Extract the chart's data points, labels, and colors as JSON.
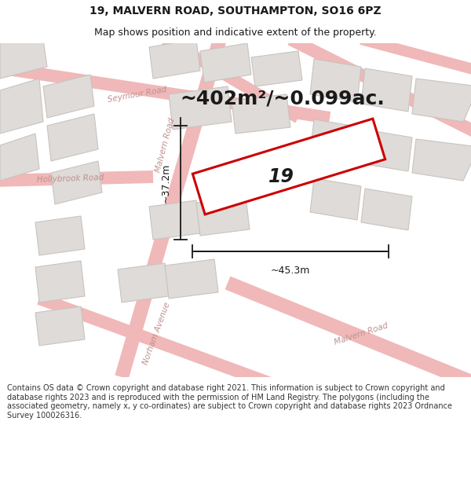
{
  "title_line1": "19, MALVERN ROAD, SOUTHAMPTON, SO16 6PZ",
  "title_line2": "Map shows position and indicative extent of the property.",
  "area_text": "~402m²/~0.099ac.",
  "property_number": "19",
  "dim_width": "~45.3m",
  "dim_height": "~37.2m",
  "footer_text": "Contains OS data © Crown copyright and database right 2021. This information is subject to Crown copyright and database rights 2023 and is reproduced with the permission of HM Land Registry. The polygons (including the associated geometry, namely x, y co-ordinates) are subject to Crown copyright and database rights 2023 Ordnance Survey 100026316.",
  "map_bg": "#f7f5f3",
  "footer_bg": "#ffffff",
  "road_color": "#f0b8b8",
  "road_edge_color": "#e08080",
  "building_fill": "#dedbd8",
  "building_stroke": "#c8c4c0",
  "highlight_color": "#cc0000",
  "dim_color": "#1a1a1a",
  "text_color": "#1a1a1a",
  "road_label_color": "#c09090",
  "title_fontsize": 10,
  "subtitle_fontsize": 9,
  "area_fontsize": 18,
  "dim_fontsize": 9,
  "footer_fontsize": 7
}
